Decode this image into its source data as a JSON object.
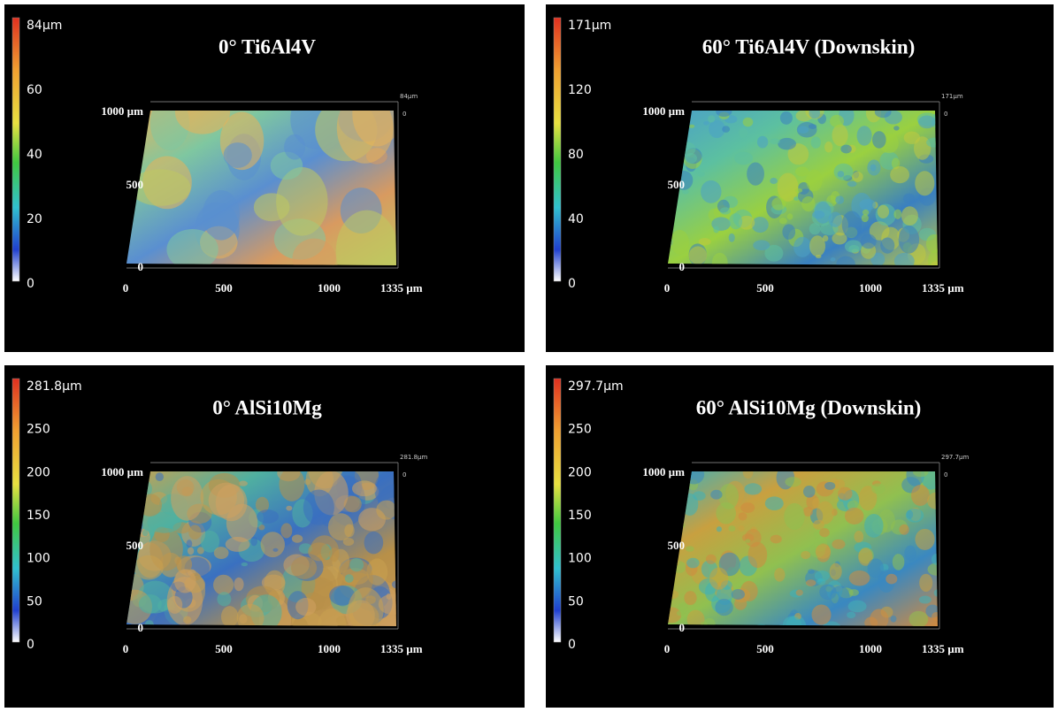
{
  "panels": [
    {
      "title": "0° Ti6Al4V",
      "colorbar": [
        "84µm",
        "60",
        "40",
        "20",
        "0"
      ],
      "y_labels": [
        "1000 µm",
        "500",
        "0"
      ],
      "x_labels": [
        "0",
        "500",
        "1000",
        "1335 µm"
      ],
      "z_labels": [
        "84µm",
        "0"
      ]
    },
    {
      "title": "60° Ti6Al4V (Downskin)",
      "colorbar": [
        "171µm",
        "120",
        "80",
        "40",
        "0"
      ],
      "y_labels": [
        "1000 µm",
        "500",
        "0"
      ],
      "x_labels": [
        "0",
        "500",
        "1000",
        "1335 µm"
      ],
      "z_labels": [
        "171µm",
        "0"
      ]
    },
    {
      "title": "0° AlSi10Mg",
      "colorbar": [
        "281.8µm",
        "250",
        "200",
        "150",
        "100",
        "50",
        "0"
      ],
      "y_labels": [
        "1000 µm",
        "500",
        "0"
      ],
      "x_labels": [
        "0",
        "500",
        "1000",
        "1335 µm"
      ],
      "z_labels": [
        "281.8µm",
        "0"
      ]
    },
    {
      "title": "60° AlSi10Mg (Downskin)",
      "colorbar": [
        "297.7µm",
        "250",
        "200",
        "150",
        "100",
        "50",
        "0"
      ],
      "y_labels": [
        "1000 µm",
        "500",
        "0"
      ],
      "x_labels": [
        "0",
        "500",
        "1000",
        "1335 µm"
      ],
      "z_labels": [
        "297.7µm",
        "0"
      ]
    }
  ]
}
